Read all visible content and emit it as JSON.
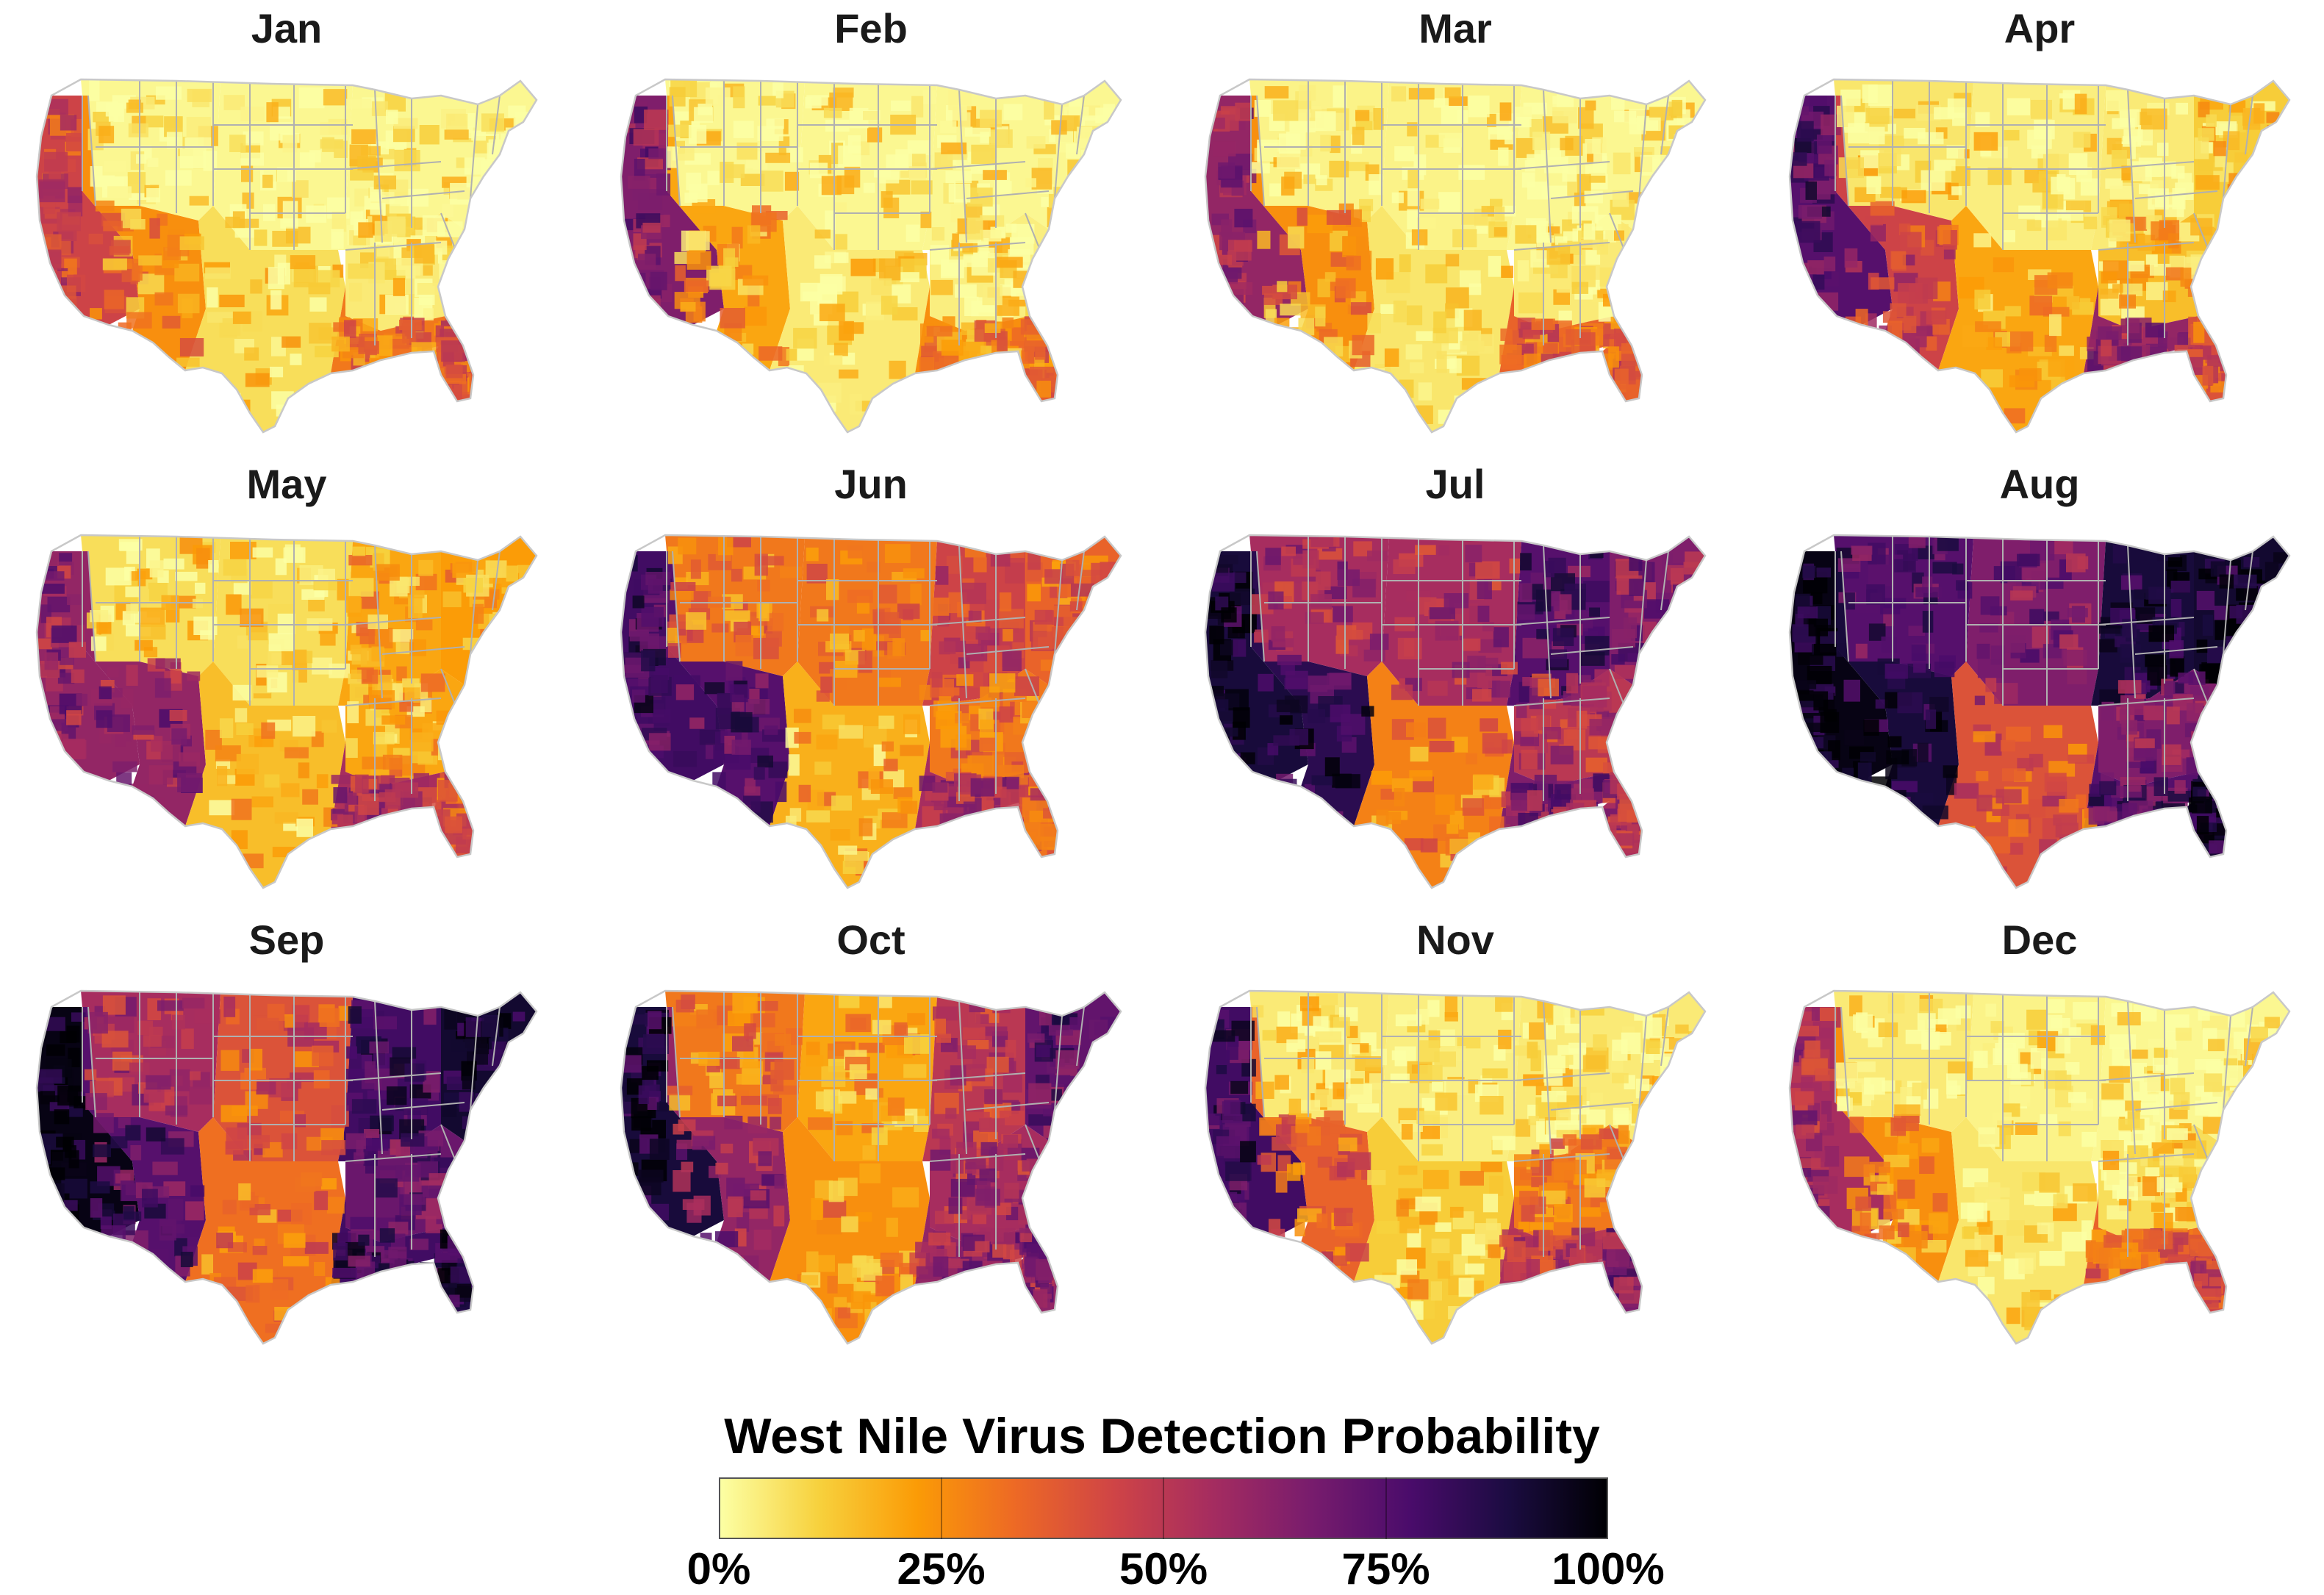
{
  "figure": {
    "legend": {
      "title": "West Nile Virus Detection Probability",
      "ticks": [
        "0%",
        "25%",
        "50%",
        "75%",
        "100%"
      ],
      "tick_values": [
        0,
        0.25,
        0.5,
        0.75,
        1.0
      ],
      "colormap": [
        "#fcffa4",
        "#f7d13d",
        "#fb9b06",
        "#ed6925",
        "#cf4446",
        "#a52c60",
        "#781c6d",
        "#4a0c6b",
        "#1b0c41",
        "#000004"
      ]
    },
    "panels": [
      {
        "month": "Jan",
        "regions": {
          "west": 0.02,
          "california": 0.45,
          "southwest": 0.25,
          "plains": 0.02,
          "midwest": 0.02,
          "texas": 0.08,
          "gulf": 0.3,
          "florida": 0.4,
          "southeast": 0.05,
          "northeast": 0.02
        }
      },
      {
        "month": "Feb",
        "regions": {
          "west": 0.02,
          "california": 0.65,
          "southwest": 0.2,
          "plains": 0.02,
          "midwest": 0.02,
          "texas": 0.05,
          "gulf": 0.25,
          "florida": 0.35,
          "southeast": 0.04,
          "northeast": 0.02
        }
      },
      {
        "month": "Mar",
        "regions": {
          "west": 0.03,
          "california": 0.6,
          "southwest": 0.25,
          "plains": 0.03,
          "midwest": 0.02,
          "texas": 0.06,
          "gulf": 0.35,
          "florida": 0.35,
          "southeast": 0.05,
          "northeast": 0.02
        }
      },
      {
        "month": "Apr",
        "regions": {
          "west": 0.06,
          "california": 0.75,
          "southwest": 0.45,
          "plains": 0.04,
          "midwest": 0.05,
          "texas": 0.2,
          "gulf": 0.6,
          "florida": 0.4,
          "southeast": 0.15,
          "northeast": 0.12
        }
      },
      {
        "month": "May",
        "regions": {
          "west": 0.08,
          "california": 0.6,
          "southwest": 0.6,
          "plains": 0.08,
          "midwest": 0.2,
          "texas": 0.15,
          "gulf": 0.55,
          "florida": 0.4,
          "southeast": 0.2,
          "northeast": 0.22
        }
      },
      {
        "month": "Jun",
        "regions": {
          "west": 0.3,
          "california": 0.8,
          "southwest": 0.75,
          "plains": 0.3,
          "midwest": 0.45,
          "texas": 0.18,
          "gulf": 0.55,
          "florida": 0.4,
          "southeast": 0.3,
          "northeast": 0.35
        }
      },
      {
        "month": "Jul",
        "regions": {
          "west": 0.55,
          "california": 0.9,
          "southwest": 0.85,
          "plains": 0.55,
          "midwest": 0.75,
          "texas": 0.28,
          "gulf": 0.65,
          "florida": 0.55,
          "southeast": 0.5,
          "northeast": 0.65
        }
      },
      {
        "month": "Aug",
        "regions": {
          "west": 0.75,
          "california": 0.97,
          "southwest": 0.9,
          "plains": 0.65,
          "midwest": 0.9,
          "texas": 0.4,
          "gulf": 0.75,
          "florida": 0.9,
          "southeast": 0.65,
          "northeast": 0.92
        }
      },
      {
        "month": "Sep",
        "regions": {
          "west": 0.55,
          "california": 0.97,
          "southwest": 0.75,
          "plains": 0.4,
          "midwest": 0.8,
          "texas": 0.32,
          "gulf": 0.8,
          "florida": 0.85,
          "southeast": 0.7,
          "northeast": 0.92
        }
      },
      {
        "month": "Oct",
        "regions": {
          "west": 0.3,
          "california": 0.9,
          "southwest": 0.6,
          "plains": 0.2,
          "midwest": 0.5,
          "texas": 0.25,
          "gulf": 0.6,
          "florida": 0.6,
          "southeast": 0.55,
          "northeast": 0.72
        }
      },
      {
        "month": "Nov",
        "regions": {
          "west": 0.05,
          "california": 0.8,
          "southwest": 0.35,
          "plains": 0.04,
          "midwest": 0.05,
          "texas": 0.12,
          "gulf": 0.5,
          "florida": 0.65,
          "southeast": 0.3,
          "northeast": 0.05
        }
      },
      {
        "month": "Dec",
        "regions": {
          "west": 0.05,
          "california": 0.55,
          "southwest": 0.25,
          "plains": 0.03,
          "midwest": 0.02,
          "texas": 0.06,
          "gulf": 0.35,
          "florida": 0.45,
          "southeast": 0.08,
          "northeast": 0.02
        }
      }
    ]
  }
}
